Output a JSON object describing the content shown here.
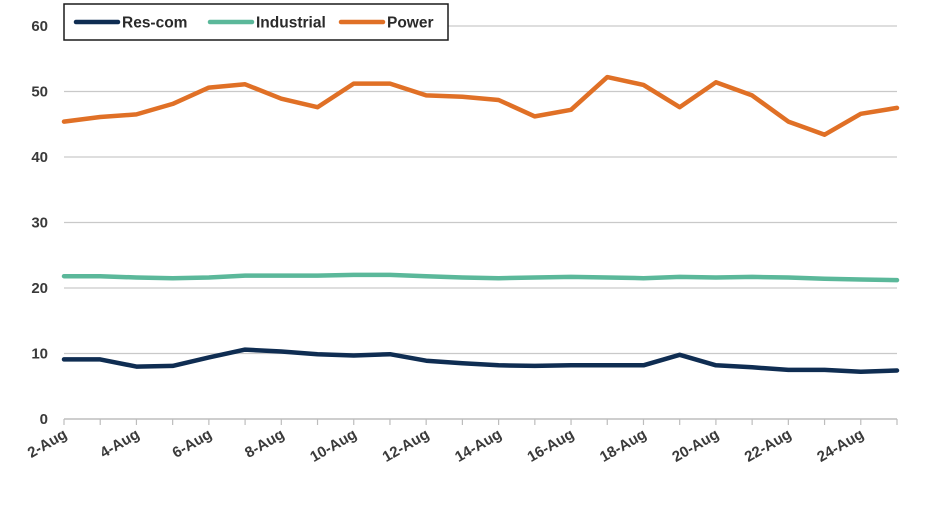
{
  "chart_data": {
    "type": "line",
    "title": "",
    "xlabel": "",
    "ylabel": "",
    "ylim": [
      0,
      60
    ],
    "yticks": [
      "0",
      "10",
      "20",
      "30",
      "40",
      "50",
      "60"
    ],
    "x": [
      "2-Aug",
      "3-Aug",
      "4-Aug",
      "5-Aug",
      "6-Aug",
      "7-Aug",
      "8-Aug",
      "9-Aug",
      "10-Aug",
      "11-Aug",
      "12-Aug",
      "13-Aug",
      "14-Aug",
      "15-Aug",
      "16-Aug",
      "17-Aug",
      "18-Aug",
      "19-Aug",
      "20-Aug",
      "21-Aug",
      "22-Aug",
      "23-Aug",
      "24-Aug",
      "25-Aug"
    ],
    "xtick_labels": [
      "2-Aug",
      "4-Aug",
      "6-Aug",
      "8-Aug",
      "10-Aug",
      "12-Aug",
      "14-Aug",
      "16-Aug",
      "18-Aug",
      "20-Aug",
      "22-Aug",
      "24-Aug"
    ],
    "grid": "horizontal",
    "legend_position": "top-left",
    "series": [
      {
        "name": "Res-com",
        "color": "#0f2d52",
        "values": [
          9.1,
          9.1,
          8.0,
          8.1,
          9.4,
          10.6,
          10.3,
          9.9,
          9.7,
          9.9,
          8.9,
          8.5,
          8.2,
          8.1,
          8.2,
          8.2,
          8.2,
          9.8,
          8.2,
          7.9,
          7.5,
          7.5,
          7.2,
          7.4
        ]
      },
      {
        "name": "Industrial",
        "color": "#5bb89a",
        "values": [
          21.8,
          21.8,
          21.6,
          21.5,
          21.6,
          21.9,
          21.9,
          21.9,
          22.0,
          22.0,
          21.8,
          21.6,
          21.5,
          21.6,
          21.7,
          21.6,
          21.5,
          21.7,
          21.6,
          21.7,
          21.6,
          21.4,
          21.3,
          21.2
        ]
      },
      {
        "name": "Power",
        "color": "#e07026",
        "values": [
          45.4,
          46.1,
          46.5,
          48.1,
          50.6,
          51.1,
          48.9,
          47.6,
          51.2,
          51.2,
          49.4,
          49.2,
          48.7,
          46.2,
          47.2,
          52.2,
          51.0,
          47.6,
          51.4,
          49.4,
          45.4,
          43.4,
          46.6,
          47.5
        ]
      }
    ]
  }
}
